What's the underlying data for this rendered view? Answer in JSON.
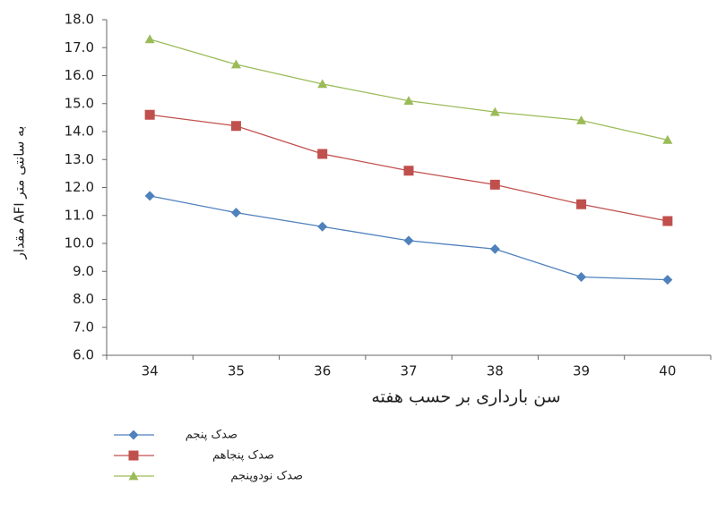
{
  "chart_data": {
    "type": "line",
    "x_label": "سن بارداری بر حسب هفته",
    "y_label": "مقدار AFI به سانتی متر",
    "categories": [
      "34",
      "35",
      "36",
      "37",
      "38",
      "39",
      "40"
    ],
    "ylim": [
      6,
      18
    ],
    "yticks": [
      {
        "value": 6,
        "label": "6.0"
      },
      {
        "value": 7,
        "label": "7.0"
      },
      {
        "value": 8,
        "label": "8.0"
      },
      {
        "value": 9,
        "label": "9.0"
      },
      {
        "value": 10,
        "label": "10.0"
      },
      {
        "value": 11,
        "label": "11.0"
      },
      {
        "value": 12,
        "label": "12.0"
      },
      {
        "value": 13,
        "label": "13.0"
      },
      {
        "value": 14,
        "label": "14.0"
      },
      {
        "value": 15,
        "label": "15.0"
      },
      {
        "value": 16,
        "label": "16.0"
      },
      {
        "value": 17,
        "label": "17.0"
      },
      {
        "value": 18,
        "label": "18.0"
      }
    ],
    "grid": false,
    "series": [
      {
        "name": "صدک پنجم",
        "color": "#4f81bd",
        "marker": "diamond",
        "values": [
          11.7,
          11.1,
          10.6,
          10.1,
          9.8,
          8.8,
          8.7
        ]
      },
      {
        "name": "صدک پنجاهم",
        "color": "#c0504d",
        "marker": "square",
        "values": [
          14.6,
          14.2,
          13.2,
          12.6,
          12.1,
          11.4,
          10.8
        ]
      },
      {
        "name": "صدک نودوپنجم",
        "color": "#9bbb59",
        "marker": "triangle",
        "values": [
          17.3,
          16.4,
          15.7,
          15.1,
          14.7,
          14.4,
          13.7
        ]
      }
    ]
  }
}
